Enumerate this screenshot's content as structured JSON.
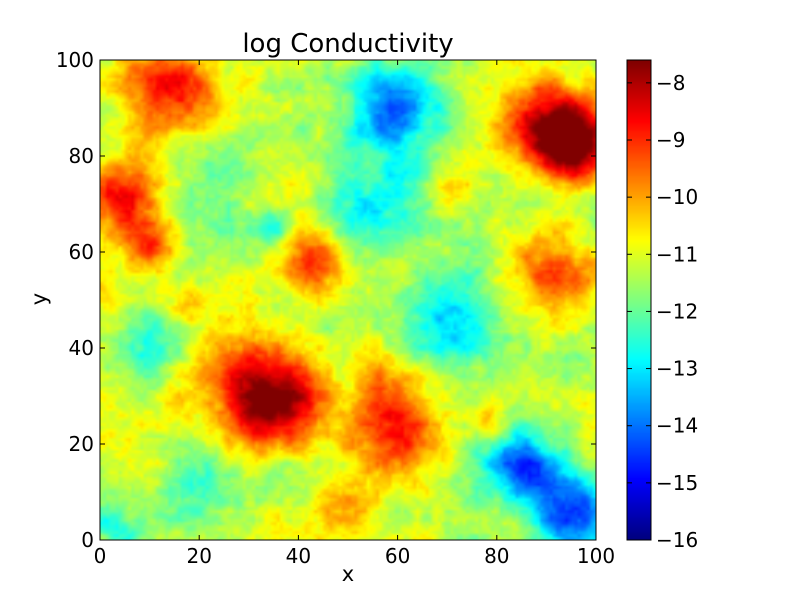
{
  "chart_data": {
    "type": "heatmap",
    "title": "log Conductivity",
    "xlabel": "x",
    "ylabel": "y",
    "xlim": [
      0,
      100
    ],
    "ylim": [
      0,
      100
    ],
    "x_ticks": [
      0,
      20,
      40,
      60,
      80,
      100
    ],
    "y_ticks": [
      0,
      20,
      40,
      60,
      80,
      100
    ],
    "colormap": "jet",
    "colorbar": {
      "range": [
        -16,
        -7.6
      ],
      "ticks": [
        -16,
        -15,
        -14,
        -13,
        -12,
        -11,
        -10,
        -9,
        -8
      ],
      "tick_labels": [
        "−16",
        "−15",
        "−14",
        "−13",
        "−12",
        "−11",
        "−10",
        "−9",
        "−8"
      ]
    },
    "grid": false,
    "background_level": -11.3,
    "features": [
      {
        "x": 15,
        "y": 93,
        "value": -8.6,
        "spread": 8
      },
      {
        "x": 5,
        "y": 72,
        "value": -8.6,
        "spread": 5
      },
      {
        "x": 10,
        "y": 61,
        "value": -9.5,
        "spread": 4
      },
      {
        "x": 30,
        "y": 31,
        "value": -8.7,
        "spread": 8
      },
      {
        "x": 36,
        "y": 27,
        "value": -8.9,
        "spread": 6
      },
      {
        "x": 43,
        "y": 59,
        "value": -8.8,
        "spread": 5
      },
      {
        "x": 60,
        "y": 21,
        "value": -8.9,
        "spread": 6
      },
      {
        "x": 58,
        "y": 33,
        "value": -9.6,
        "spread": 6
      },
      {
        "x": 50,
        "y": 8,
        "value": -9.6,
        "spread": 4
      },
      {
        "x": 90,
        "y": 87,
        "value": -8.4,
        "spread": 7
      },
      {
        "x": 95,
        "y": 82,
        "value": -8.2,
        "spread": 5
      },
      {
        "x": 92,
        "y": 55,
        "value": -9.0,
        "spread": 6
      },
      {
        "x": 70,
        "y": 73,
        "value": -10.0,
        "spread": 4
      },
      {
        "x": 78,
        "y": 25,
        "value": -10.0,
        "spread": 3
      },
      {
        "x": 17,
        "y": 49,
        "value": -10.0,
        "spread": 3
      },
      {
        "x": 60,
        "y": 90,
        "value": -14.3,
        "spread": 6
      },
      {
        "x": 95,
        "y": 5,
        "value": -14.8,
        "spread": 6
      },
      {
        "x": 85,
        "y": 16,
        "value": -14.0,
        "spread": 5
      },
      {
        "x": 70,
        "y": 47,
        "value": -13.3,
        "spread": 7
      },
      {
        "x": 35,
        "y": 65,
        "value": -13.0,
        "spread": 3
      },
      {
        "x": 55,
        "y": 70,
        "value": -12.6,
        "spread": 8
      },
      {
        "x": 20,
        "y": 80,
        "value": -12.3,
        "spread": 6
      },
      {
        "x": 8,
        "y": 40,
        "value": -12.5,
        "spread": 6
      },
      {
        "x": 3,
        "y": 3,
        "value": -13.0,
        "spread": 3
      },
      {
        "x": 20,
        "y": 12,
        "value": -12.5,
        "spread": 6
      },
      {
        "x": 38,
        "y": 13,
        "value": -12.3,
        "spread": 4
      }
    ]
  }
}
